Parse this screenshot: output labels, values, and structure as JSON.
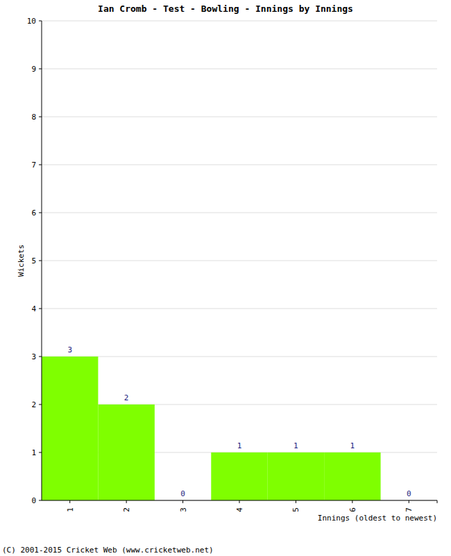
{
  "chart_data": {
    "type": "bar",
    "title": "Ian Cromb - Test - Bowling - Innings by Innings",
    "x_label": "Innings (oldest to newest)",
    "y_label": "Wickets",
    "annotations": [
      "(C) 2001-2015 Cricket Web (www.cricketweb.net)"
    ],
    "categories": [
      "1",
      "2",
      "3",
      "4",
      "5",
      "6",
      "7"
    ],
    "values": [
      3,
      2,
      0,
      1,
      1,
      1,
      0
    ],
    "color": "#7fff00",
    "ylim": [
      0,
      10
    ],
    "yticks": [
      0,
      1,
      2,
      3,
      4,
      5,
      6,
      7,
      8,
      9,
      10
    ],
    "grid": true,
    "data_labels": true
  }
}
